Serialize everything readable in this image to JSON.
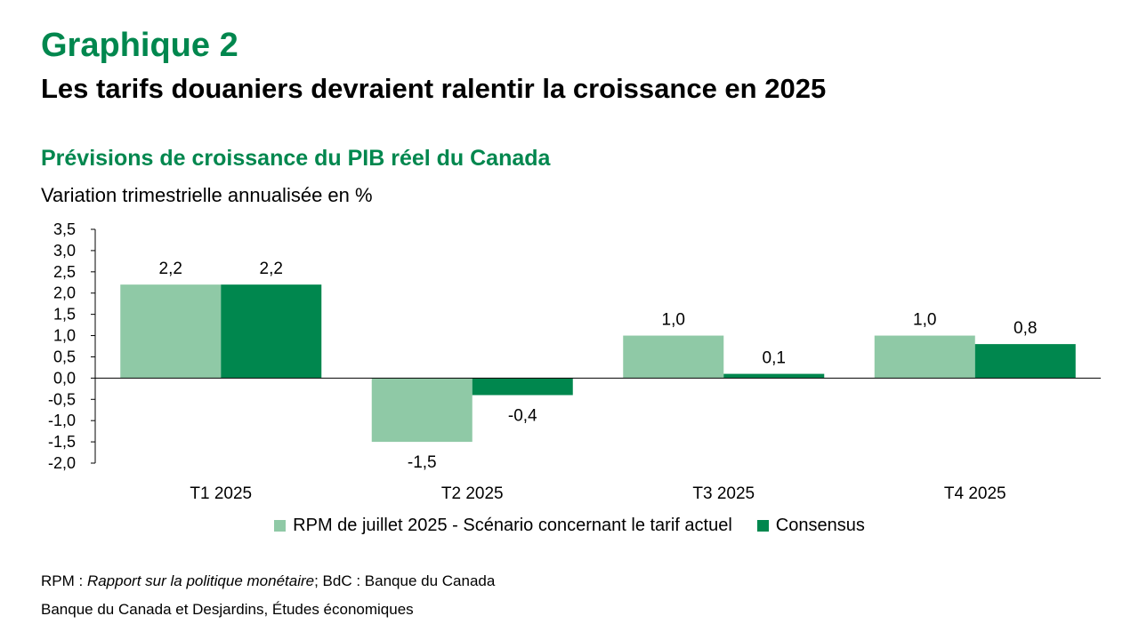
{
  "header": {
    "label": "Graphique 2",
    "title": "Les tarifs douaniers devraient ralentir la croissance en 2025"
  },
  "chart_data": {
    "type": "bar",
    "title": "Prévisions de croissance du PIB réel du Canada",
    "ylabel": "Variation trimestrielle annualisée en %",
    "categories": [
      "T1 2025",
      "T2 2025",
      "T3 2025",
      "T4 2025"
    ],
    "series": [
      {
        "name": "RPM de juillet 2025 - Scénario concernant le tarif actuel",
        "values": [
          2.2,
          -1.5,
          1.0,
          1.0
        ],
        "labels": [
          "2,2",
          "-1,5",
          "1,0",
          "1,0"
        ],
        "color": "#8FC9A6"
      },
      {
        "name": "Consensus",
        "values": [
          2.2,
          -0.4,
          0.1,
          0.8
        ],
        "labels": [
          "2,2",
          "-0,4",
          "0,1",
          "0,8"
        ],
        "color": "#00874E"
      }
    ],
    "ylim": [
      -2.0,
      3.5
    ],
    "yticks": [
      3.5,
      3.0,
      2.5,
      2.0,
      1.5,
      1.0,
      0.5,
      0.0,
      -0.5,
      -1.0,
      -1.5,
      -2.0
    ],
    "ytick_labels": [
      "3,5",
      "3,0",
      "2,5",
      "2,0",
      "1,5",
      "1,0",
      "0,5",
      "0,0",
      "-0,5",
      "-1,0",
      "-1,5",
      "-2,0"
    ],
    "grid": false,
    "legend_position": "bottom"
  },
  "notes": {
    "abbrev_prefix": "RPM : ",
    "abbrev_italic": "Rapport sur la politique monétaire",
    "abbrev_suffix": "; BdC : Banque du Canada",
    "source": "Banque du Canada et Desjardins, Études économiques"
  }
}
